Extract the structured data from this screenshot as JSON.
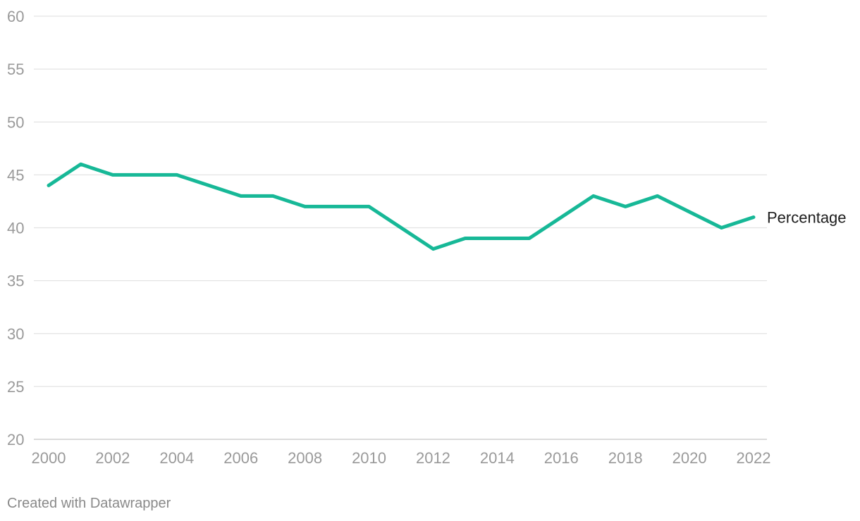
{
  "chart_data": {
    "type": "line",
    "x": [
      2000,
      2001,
      2002,
      2003,
      2004,
      2005,
      2006,
      2007,
      2008,
      2009,
      2010,
      2011,
      2012,
      2013,
      2014,
      2015,
      2016,
      2017,
      2018,
      2019,
      2020,
      2021,
      2022
    ],
    "series": [
      {
        "name": "Percentage",
        "values": [
          44,
          46,
          45,
          45,
          45,
          44,
          43,
          43,
          42,
          42,
          42,
          40,
          38,
          39,
          39,
          39,
          41,
          43,
          42,
          43,
          41.5,
          40,
          41
        ],
        "color": "#17b897"
      }
    ],
    "xticks": [
      "2000",
      "2002",
      "2004",
      "2006",
      "2008",
      "2010",
      "2012",
      "2014",
      "2016",
      "2018",
      "2020",
      "2022"
    ],
    "yticks": [
      "20",
      "25",
      "30",
      "35",
      "40",
      "45",
      "50",
      "55",
      "60"
    ],
    "xlim": [
      2000,
      2022
    ],
    "ylim": [
      20,
      60
    ],
    "grid": true,
    "title": "",
    "xlabel": "",
    "ylabel": ""
  },
  "footer": {
    "credit": "Created with Datawrapper"
  },
  "colors": {
    "line": "#17b897",
    "grid": "#e3e3e3",
    "tick_text": "#9a9a9a"
  }
}
